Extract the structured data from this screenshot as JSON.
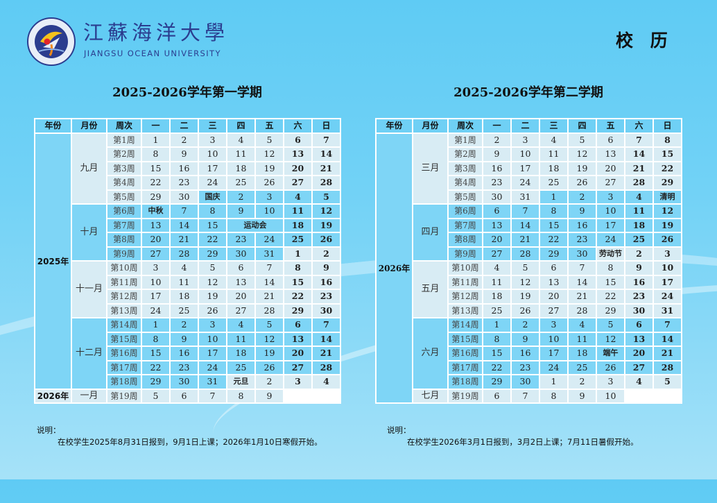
{
  "header": {
    "logo_cn": "江蘇海洋大學",
    "logo_en": "JIANGSU OCEAN UNIVERSITY",
    "page_title": "校 历"
  },
  "colors": {
    "light_cell": "#d8ecf4",
    "blue_cell": "#7ed5f6",
    "header_cell": "#6fd0f5",
    "logo_text": "#2b3d8f"
  },
  "semester1": {
    "title": "2025-2026学年第一学期",
    "headers": [
      "年份",
      "月份",
      "周次",
      "一",
      "二",
      "三",
      "四",
      "五",
      "六",
      "日"
    ],
    "years": [
      {
        "label": "2025年",
        "rows": 18
      },
      {
        "label": "2026年",
        "rows": 1
      }
    ],
    "months": [
      {
        "label": "九月",
        "weeks": [
          {
            "week": "第1周",
            "days": [
              "1",
              "2",
              "3",
              "4",
              "5",
              "6",
              "7"
            ]
          },
          {
            "week": "第2周",
            "days": [
              "8",
              "9",
              "10",
              "11",
              "12",
              "13",
              "14"
            ]
          },
          {
            "week": "第3周",
            "days": [
              "15",
              "16",
              "17",
              "18",
              "19",
              "20",
              "21"
            ]
          },
          {
            "week": "第4周",
            "days": [
              "22",
              "23",
              "24",
              "25",
              "26",
              "27",
              "28"
            ]
          },
          {
            "week": "第5周",
            "days": [
              "29",
              "30",
              "国庆",
              "2",
              "3",
              "4",
              "5"
            ],
            "next_month_from": 2
          }
        ]
      },
      {
        "label": "十月",
        "weeks": [
          {
            "week": "第6周",
            "days": [
              "中秋",
              "7",
              "8",
              "9",
              "10",
              "11",
              "12"
            ]
          },
          {
            "week": "第7周",
            "days": [
              "13",
              "14",
              "15",
              "运动会",
              null,
              "18",
              "19"
            ]
          },
          {
            "week": "第8周",
            "days": [
              "20",
              "21",
              "22",
              "23",
              "24",
              "25",
              "26"
            ]
          },
          {
            "week": "第9周",
            "days": [
              "27",
              "28",
              "29",
              "30",
              "31",
              "1",
              "2"
            ],
            "next_month_from": 5
          }
        ]
      },
      {
        "label": "十一月",
        "weeks": [
          {
            "week": "第10周",
            "days": [
              "3",
              "4",
              "5",
              "6",
              "7",
              "8",
              "9"
            ]
          },
          {
            "week": "第11周",
            "days": [
              "10",
              "11",
              "12",
              "13",
              "14",
              "15",
              "16"
            ]
          },
          {
            "week": "第12周",
            "days": [
              "17",
              "18",
              "19",
              "20",
              "21",
              "22",
              "23"
            ]
          },
          {
            "week": "第13周",
            "days": [
              "24",
              "25",
              "26",
              "27",
              "28",
              "29",
              "30"
            ]
          }
        ]
      },
      {
        "label": "十二月",
        "weeks": [
          {
            "week": "第14周",
            "days": [
              "1",
              "2",
              "3",
              "4",
              "5",
              "6",
              "7"
            ]
          },
          {
            "week": "第15周",
            "days": [
              "8",
              "9",
              "10",
              "11",
              "12",
              "13",
              "14"
            ]
          },
          {
            "week": "第16周",
            "days": [
              "15",
              "16",
              "17",
              "18",
              "19",
              "20",
              "21"
            ]
          },
          {
            "week": "第17周",
            "days": [
              "22",
              "23",
              "24",
              "25",
              "26",
              "27",
              "28"
            ]
          },
          {
            "week": "第18周",
            "days": [
              "29",
              "30",
              "31",
              "元旦",
              "2",
              "3",
              "4"
            ],
            "next_month_from": 3
          }
        ]
      },
      {
        "label": "一月",
        "weeks": [
          {
            "week": "第19周",
            "days": [
              "5",
              "6",
              "7",
              "8",
              "9"
            ]
          }
        ]
      }
    ],
    "note_heading": "说明：",
    "note_text": "在校学生2025年8月31日报到，9月1日上课；2026年1月10日寒假开始。"
  },
  "semester2": {
    "title": "2025-2026学年第二学期",
    "headers": [
      "年份",
      "月份",
      "周次",
      "一",
      "二",
      "三",
      "四",
      "五",
      "六",
      "日"
    ],
    "years": [
      {
        "label": "2026年",
        "rows": 19
      }
    ],
    "months": [
      {
        "label": "三月",
        "weeks": [
          {
            "week": "第1周",
            "days": [
              "2",
              "3",
              "4",
              "5",
              "6",
              "7",
              "8"
            ]
          },
          {
            "week": "第2周",
            "days": [
              "9",
              "10",
              "11",
              "12",
              "13",
              "14",
              "15"
            ]
          },
          {
            "week": "第3周",
            "days": [
              "16",
              "17",
              "18",
              "19",
              "20",
              "21",
              "22"
            ]
          },
          {
            "week": "第4周",
            "days": [
              "23",
              "24",
              "25",
              "26",
              "27",
              "28",
              "29"
            ]
          },
          {
            "week": "第5周",
            "days": [
              "30",
              "31",
              "1",
              "2",
              "3",
              "4",
              "清明"
            ],
            "next_month_from": 2
          }
        ]
      },
      {
        "label": "四月",
        "weeks": [
          {
            "week": "第6周",
            "days": [
              "6",
              "7",
              "8",
              "9",
              "10",
              "11",
              "12"
            ]
          },
          {
            "week": "第7周",
            "days": [
              "13",
              "14",
              "15",
              "16",
              "17",
              "18",
              "19"
            ]
          },
          {
            "week": "第8周",
            "days": [
              "20",
              "21",
              "22",
              "23",
              "24",
              "25",
              "26"
            ]
          },
          {
            "week": "第9周",
            "days": [
              "27",
              "28",
              "29",
              "30",
              "劳动节",
              "2",
              "3"
            ],
            "next_month_from": 4
          }
        ]
      },
      {
        "label": "五月",
        "weeks": [
          {
            "week": "第10周",
            "days": [
              "4",
              "5",
              "6",
              "7",
              "8",
              "9",
              "10"
            ]
          },
          {
            "week": "第11周",
            "days": [
              "11",
              "12",
              "13",
              "14",
              "15",
              "16",
              "17"
            ]
          },
          {
            "week": "第12周",
            "days": [
              "18",
              "19",
              "20",
              "21",
              "22",
              "23",
              "24"
            ]
          },
          {
            "week": "第13周",
            "days": [
              "25",
              "26",
              "27",
              "28",
              "29",
              "30",
              "31"
            ]
          }
        ]
      },
      {
        "label": "六月",
        "weeks": [
          {
            "week": "第14周",
            "days": [
              "1",
              "2",
              "3",
              "4",
              "5",
              "6",
              "7"
            ]
          },
          {
            "week": "第15周",
            "days": [
              "8",
              "9",
              "10",
              "11",
              "12",
              "13",
              "14"
            ]
          },
          {
            "week": "第16周",
            "days": [
              "15",
              "16",
              "17",
              "18",
              "端午",
              "20",
              "21"
            ]
          },
          {
            "week": "第17周",
            "days": [
              "22",
              "23",
              "24",
              "25",
              "26",
              "27",
              "28"
            ]
          },
          {
            "week": "第18周",
            "days": [
              "29",
              "30",
              "1",
              "2",
              "3",
              "4",
              "5"
            ],
            "next_month_from": 2
          }
        ]
      },
      {
        "label": "七月",
        "weeks": [
          {
            "week": "第19周",
            "days": [
              "6",
              "7",
              "8",
              "9",
              "10"
            ]
          }
        ]
      }
    ],
    "note_heading": "说明：",
    "note_text": "在校学生2026年3月1日报到，3月2日上课；7月11日暑假开始。"
  }
}
